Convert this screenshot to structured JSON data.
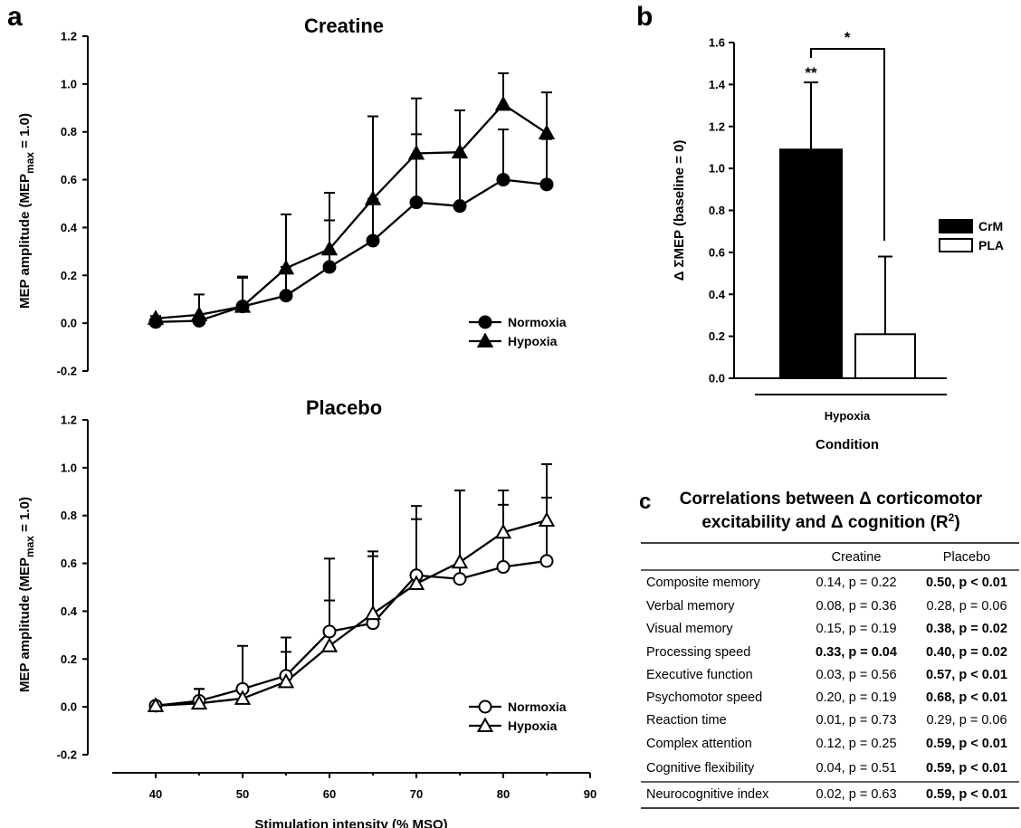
{
  "panels": {
    "a": "a",
    "b": "b",
    "c": "c"
  },
  "chart_data": [
    {
      "type": "line",
      "panel": "a",
      "title": "Creatine",
      "ylabel_main": "MEP amplitude (MEP",
      "ylabel_sub": "max",
      "ylabel_tail": " = 1.0)",
      "ylim": [
        -0.2,
        1.2
      ],
      "yticks": [
        "-0.2",
        "0.0",
        "0.2",
        "0.4",
        "0.6",
        "0.8",
        "1.0",
        "1.2"
      ],
      "x": [
        40,
        45,
        50,
        55,
        60,
        65,
        70,
        75,
        80,
        85
      ],
      "legend_position": "bottom-right",
      "series": [
        {
          "name": "Normoxia",
          "marker": "circle-filled",
          "values": [
            0.005,
            0.01,
            0.07,
            0.115,
            0.235,
            0.345,
            0.505,
            0.49,
            0.6,
            0.58
          ],
          "error": [
            0.01,
            0.01,
            0.12,
            0.12,
            0.195,
            0.175,
            0.285,
            0.21,
            0.21,
            0.19
          ]
        },
        {
          "name": "Hypoxia",
          "marker": "triangle-filled",
          "values": [
            0.02,
            0.035,
            0.07,
            0.23,
            0.31,
            0.52,
            0.71,
            0.715,
            0.915,
            0.795
          ],
          "error": [
            0.01,
            0.085,
            0.125,
            0.225,
            0.235,
            0.345,
            0.23,
            0.175,
            0.13,
            0.17
          ]
        }
      ]
    },
    {
      "type": "line",
      "panel": "a",
      "title": "Placebo",
      "ylabel_main": "MEP amplitude (MEP",
      "ylabel_sub": "max",
      "ylabel_tail": " = 1.0)",
      "xlabel": "Stimulation intensity (% MSO)",
      "ylim": [
        -0.2,
        1.2
      ],
      "yticks": [
        "-0.2",
        "0.0",
        "0.2",
        "0.4",
        "0.6",
        "0.8",
        "1.0",
        "1.2"
      ],
      "xlim": [
        35,
        90
      ],
      "xticks": [
        "40",
        "50",
        "60",
        "70",
        "80",
        "90"
      ],
      "x": [
        40,
        45,
        50,
        55,
        60,
        65,
        70,
        75,
        80,
        85
      ],
      "legend_position": "bottom-right",
      "series": [
        {
          "name": "Normoxia",
          "marker": "circle-open",
          "values": [
            0.005,
            0.025,
            0.075,
            0.13,
            0.315,
            0.35,
            0.55,
            0.535,
            0.585,
            0.61
          ],
          "error": [
            0.01,
            0.05,
            0.18,
            0.16,
            0.305,
            0.28,
            0.29,
            0.37,
            0.26,
            0.265
          ]
        },
        {
          "name": "Hypoxia",
          "marker": "triangle-open",
          "values": [
            0.005,
            0.015,
            0.035,
            0.105,
            0.255,
            0.39,
            0.515,
            0.605,
            0.73,
            0.78
          ],
          "error": [
            0.01,
            0.06,
            0.04,
            0.125,
            0.19,
            0.26,
            0.27,
            0.3,
            0.175,
            0.235
          ]
        }
      ]
    },
    {
      "type": "bar",
      "panel": "b",
      "ylabel": "Δ ΣMEP (baseline = 0)",
      "xlabel": "Condition",
      "categories": [
        "Hypoxia"
      ],
      "ylim": [
        0,
        1.6
      ],
      "yticks": [
        "0.0",
        "0.2",
        "0.4",
        "0.6",
        "0.8",
        "1.0",
        "1.2",
        "1.4",
        "1.6"
      ],
      "legend_position": "right",
      "series": [
        {
          "name": "CrM",
          "fill": "#000000",
          "values": [
            1.09
          ],
          "error": [
            0.32
          ]
        },
        {
          "name": "PLA",
          "fill": "#ffffff",
          "values": [
            0.21
          ],
          "error": [
            0.37
          ]
        }
      ],
      "annotations": {
        "crm_mark": "**",
        "comparison_mark": "*"
      }
    },
    {
      "type": "table",
      "panel": "c",
      "title_line1": "Correlations between Δ corticomotor",
      "title_line2": "excitability and Δ cognition (R",
      "title_sup": "2",
      "title_close": ")",
      "columns": [
        "",
        "Creatine",
        "Placebo"
      ],
      "rows": [
        {
          "label": "Composite memory",
          "creatine": "0.14, p = 0.22",
          "creatine_bold": false,
          "placebo": "0.50, p < 0.01",
          "placebo_bold": true
        },
        {
          "label": "Verbal memory",
          "creatine": "0.08, p = 0.36",
          "creatine_bold": false,
          "placebo": "0.28, p = 0.06",
          "placebo_bold": false
        },
        {
          "label": "Visual memory",
          "creatine": "0.15, p = 0.19",
          "creatine_bold": false,
          "placebo": "0.38, p = 0.02",
          "placebo_bold": true
        },
        {
          "label": "Processing speed",
          "creatine": "0.33, p = 0.04",
          "creatine_bold": true,
          "placebo": "0.40, p = 0.02",
          "placebo_bold": true
        },
        {
          "label": "Executive function",
          "creatine": "0.03, p = 0.56",
          "creatine_bold": false,
          "placebo": "0.57, p < 0.01",
          "placebo_bold": true
        },
        {
          "label": "Psychomotor speed",
          "creatine": "0.20, p = 0.19",
          "creatine_bold": false,
          "placebo": "0.68, p < 0.01",
          "placebo_bold": true
        },
        {
          "label": "Reaction time",
          "creatine": "0.01, p = 0.73",
          "creatine_bold": false,
          "placebo": "0.29, p = 0.06",
          "placebo_bold": false
        },
        {
          "label": "Complex attention",
          "creatine": "0.12, p = 0.25",
          "creatine_bold": false,
          "placebo": "0.59, p < 0.01",
          "placebo_bold": true
        },
        {
          "label": "Cognitive flexibility",
          "creatine": "0.04, p = 0.51",
          "creatine_bold": false,
          "placebo": "0.59, p < 0.01",
          "placebo_bold": true
        },
        {
          "label": "Neurocognitive index",
          "creatine": "0.02, p = 0.63",
          "creatine_bold": false,
          "placebo": "0.59, p < 0.01",
          "placebo_bold": true
        }
      ]
    }
  ]
}
